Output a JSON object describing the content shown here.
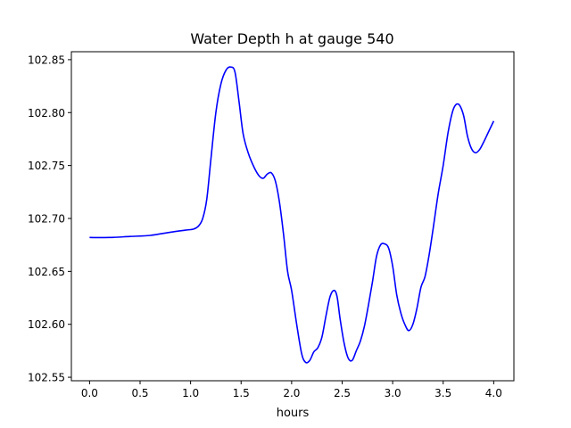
{
  "chart_data": {
    "type": "line",
    "title": "Water Depth h at gauge 540",
    "xlabel": "hours",
    "ylabel": "",
    "xlim": [
      -0.18,
      4.2
    ],
    "ylim": [
      102.5467,
      102.8575
    ],
    "grid": false,
    "x_ticks": [
      0.0,
      0.5,
      1.0,
      1.5,
      2.0,
      2.5,
      3.0,
      3.5,
      4.0
    ],
    "x_tick_labels": [
      "0.0",
      "0.5",
      "1.0",
      "1.5",
      "2.0",
      "2.5",
      "3.0",
      "3.5",
      "4.0"
    ],
    "y_ticks": [
      102.55,
      102.6,
      102.65,
      102.7,
      102.75,
      102.8,
      102.85
    ],
    "y_tick_labels": [
      "102.55",
      "102.60",
      "102.65",
      "102.70",
      "102.75",
      "102.80",
      "102.85"
    ],
    "series": [
      {
        "color": "#0000ff",
        "x": [
          0.0,
          0.2,
          0.4,
          0.6,
          0.8,
          0.95,
          1.03,
          1.08,
          1.12,
          1.16,
          1.2,
          1.25,
          1.3,
          1.35,
          1.4,
          1.44,
          1.48,
          1.52,
          1.57,
          1.63,
          1.68,
          1.72,
          1.76,
          1.8,
          1.84,
          1.88,
          1.92,
          1.96,
          2.0,
          2.05,
          2.1,
          2.14,
          2.18,
          2.22,
          2.26,
          2.3,
          2.34,
          2.38,
          2.42,
          2.45,
          2.48,
          2.52,
          2.56,
          2.6,
          2.64,
          2.68,
          2.72,
          2.76,
          2.8,
          2.84,
          2.88,
          2.92,
          2.96,
          3.0,
          3.04,
          3.08,
          3.12,
          3.16,
          3.2,
          3.24,
          3.28,
          3.32,
          3.36,
          3.4,
          3.45,
          3.5,
          3.55,
          3.6,
          3.65,
          3.7,
          3.74,
          3.78,
          3.82,
          3.86,
          3.9,
          3.94,
          3.98,
          4.0
        ],
        "y": [
          102.682,
          102.682,
          102.683,
          102.684,
          102.687,
          102.689,
          102.69,
          102.693,
          102.7,
          102.718,
          102.755,
          102.8,
          102.827,
          102.84,
          102.843,
          102.838,
          102.81,
          102.78,
          102.762,
          102.748,
          102.74,
          102.738,
          102.742,
          102.743,
          102.735,
          102.715,
          102.685,
          102.65,
          102.632,
          102.6,
          102.572,
          102.564,
          102.566,
          102.574,
          102.578,
          102.588,
          102.608,
          102.626,
          102.632,
          102.626,
          102.605,
          102.582,
          102.568,
          102.566,
          102.575,
          102.584,
          102.598,
          102.618,
          102.64,
          102.664,
          102.675,
          102.676,
          102.672,
          102.655,
          102.628,
          102.611,
          102.6,
          102.594,
          102.6,
          102.615,
          102.635,
          102.645,
          102.665,
          102.69,
          102.723,
          102.75,
          102.782,
          102.803,
          102.808,
          102.798,
          102.778,
          102.766,
          102.762,
          102.765,
          102.772,
          102.78,
          102.788,
          102.792
        ]
      }
    ]
  }
}
